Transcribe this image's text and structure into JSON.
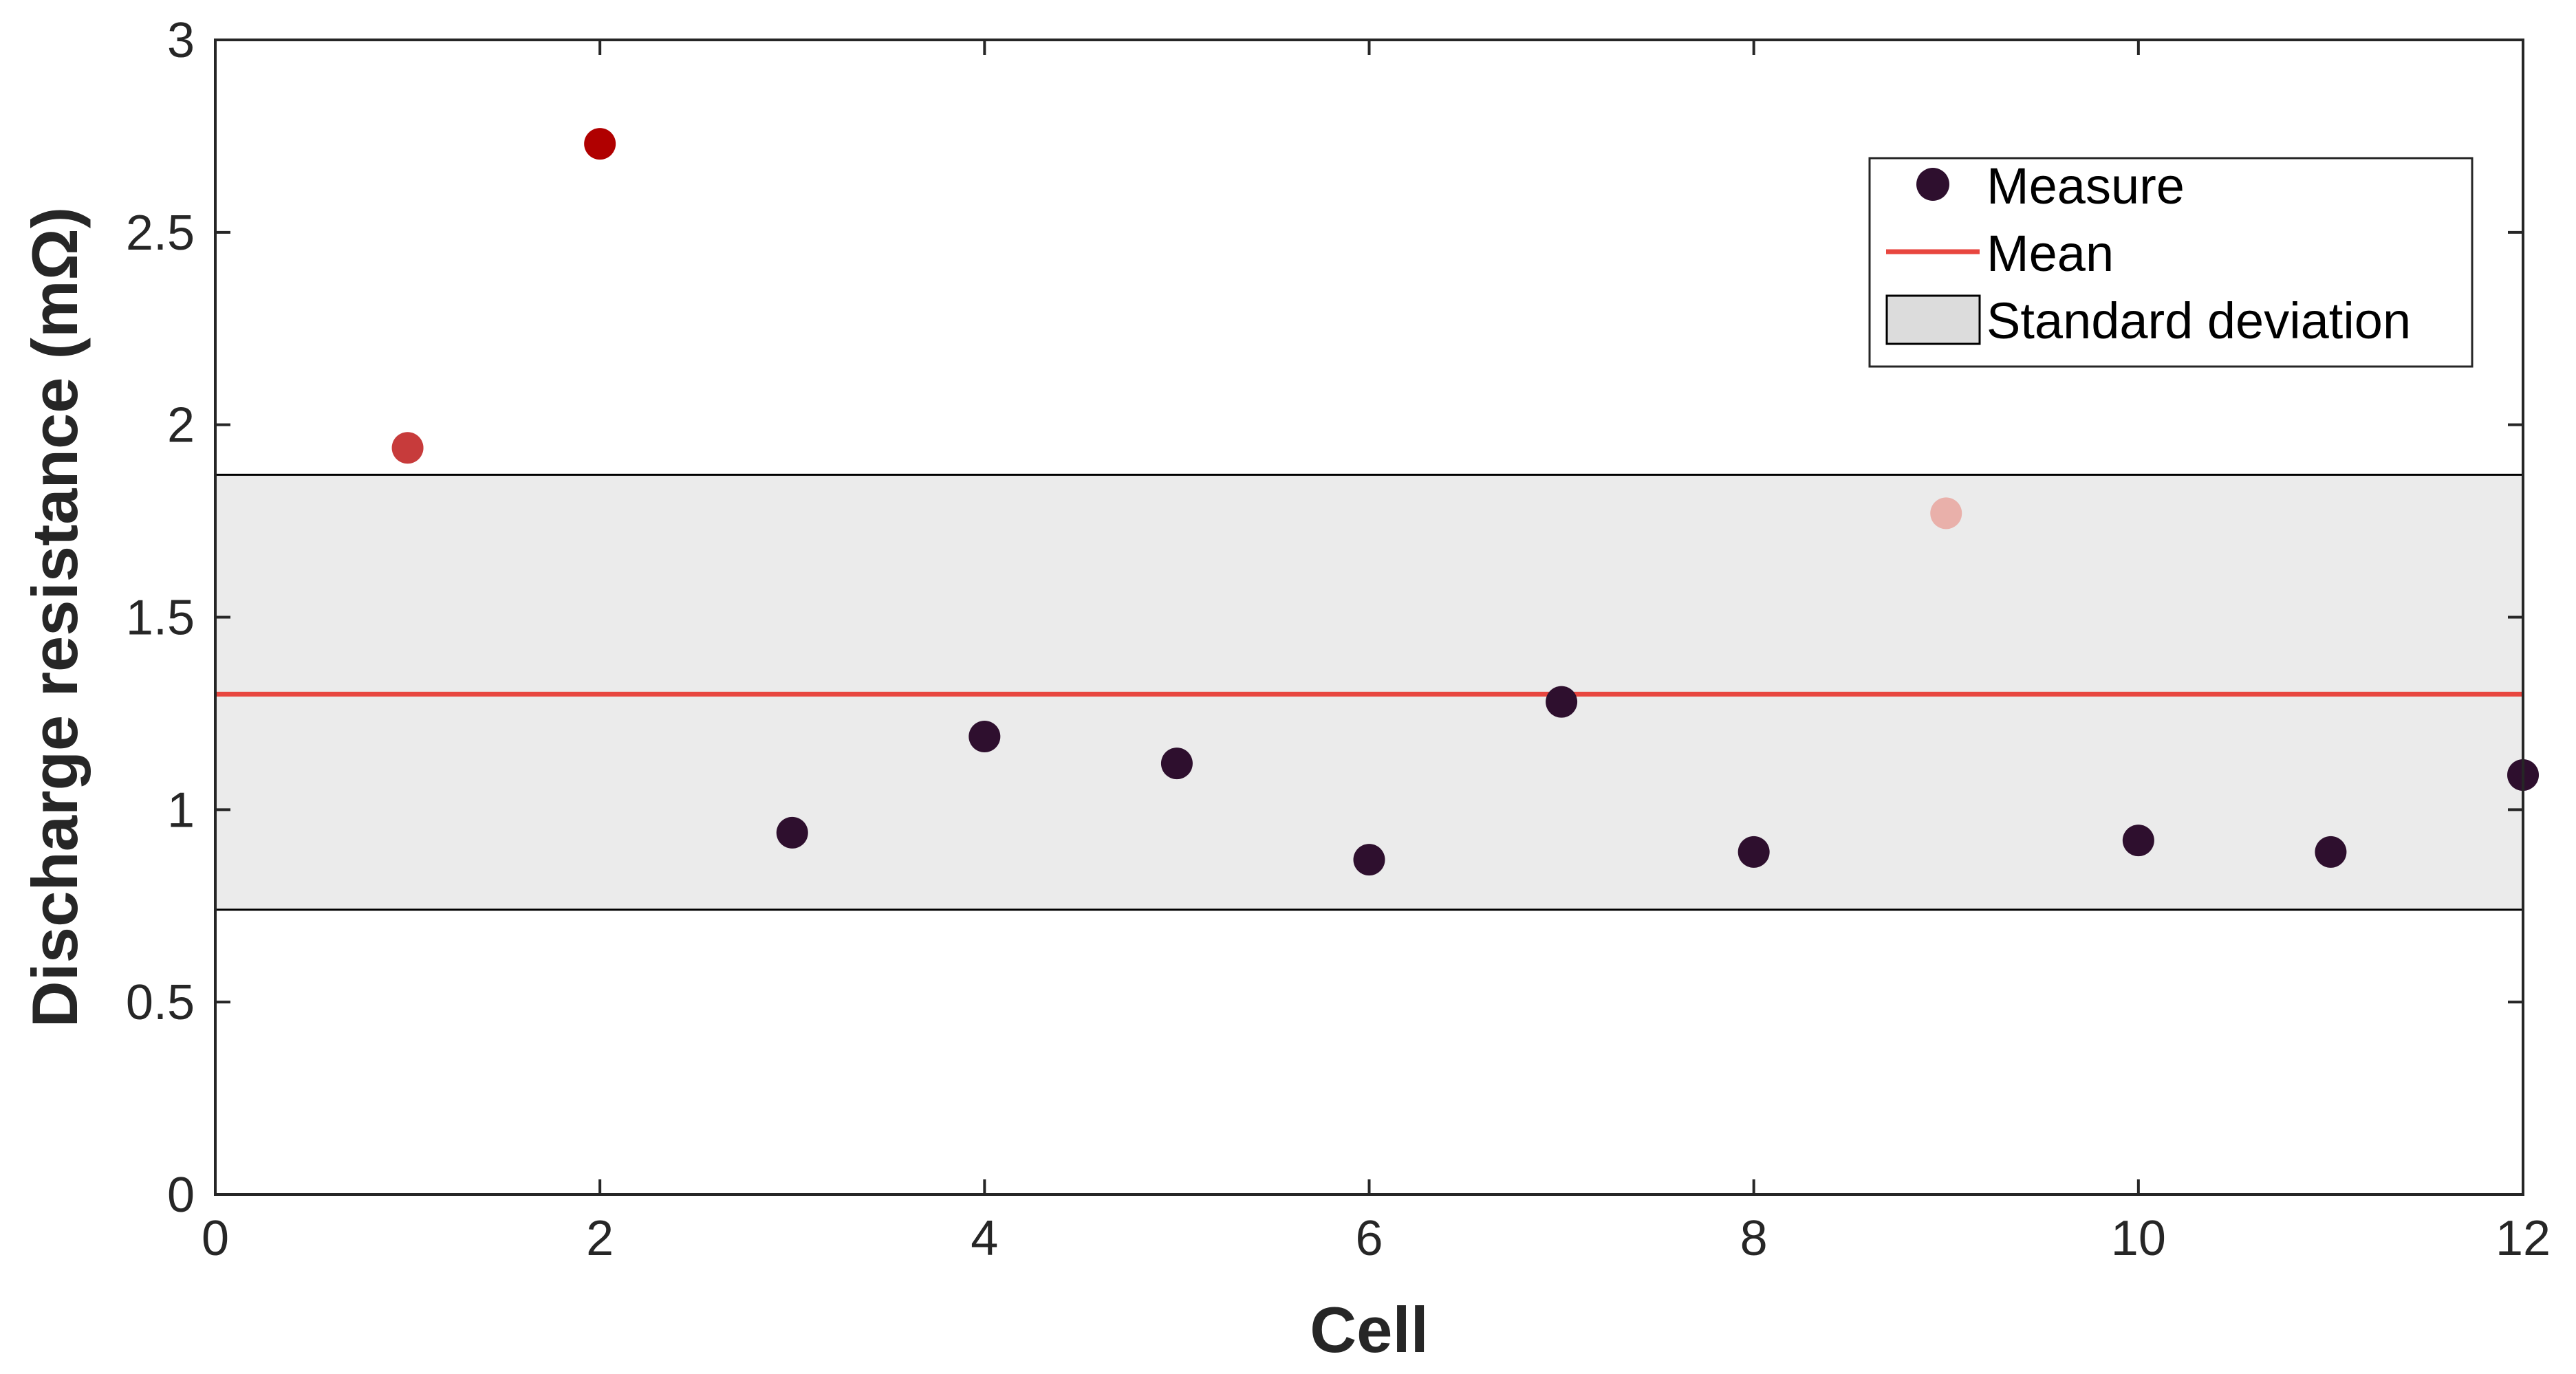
{
  "chart_data": {
    "type": "scatter",
    "xlabel": "Cell",
    "ylabel": "Discharge resistance (mΩ)",
    "xlim": [
      0,
      12
    ],
    "ylim": [
      0,
      3
    ],
    "x_ticks": [
      0,
      2,
      4,
      6,
      8,
      10,
      12
    ],
    "y_ticks": [
      0,
      0.5,
      1,
      1.5,
      2,
      2.5,
      3
    ],
    "x_tick_labels": [
      "0",
      "2",
      "4",
      "6",
      "8",
      "10",
      "12"
    ],
    "y_tick_labels": [
      "0",
      "0.5",
      "1",
      "1.5",
      "2",
      "2.5",
      "3"
    ],
    "grid": false,
    "legend": {
      "placement": "top-right",
      "entries": [
        "Measure",
        "Mean",
        "Standard deviation"
      ]
    },
    "series": [
      {
        "name": "Measure",
        "points": [
          {
            "x": 1,
            "y": 1.94,
            "color": "#c73b3b"
          },
          {
            "x": 2,
            "y": 2.73,
            "color": "#b00000"
          },
          {
            "x": 3,
            "y": 0.94,
            "color": "#2e0f2e"
          },
          {
            "x": 4,
            "y": 1.19,
            "color": "#2e0f2e"
          },
          {
            "x": 5,
            "y": 1.12,
            "color": "#2e0f2e"
          },
          {
            "x": 6,
            "y": 0.87,
            "color": "#2e0f2e"
          },
          {
            "x": 7,
            "y": 1.28,
            "color": "#2e0f2e"
          },
          {
            "x": 8,
            "y": 0.89,
            "color": "#2e0f2e"
          },
          {
            "x": 9,
            "y": 1.77,
            "color": "#e9b0aa"
          },
          {
            "x": 10,
            "y": 0.92,
            "color": "#2e0f2e"
          },
          {
            "x": 11,
            "y": 0.89,
            "color": "#2e0f2e"
          },
          {
            "x": 12,
            "y": 1.09,
            "color": "#2e0f2e"
          }
        ]
      },
      {
        "name": "Mean",
        "value": 1.3,
        "color": "#e8463f"
      },
      {
        "name": "Standard deviation",
        "lower": 0.74,
        "upper": 1.87,
        "fill": "#ebebeb"
      }
    ],
    "colors": {
      "axis": "#262626",
      "marker_default": "#2e0f2e",
      "legend_marker": "#2e0f2e",
      "legend_patch": "#dcdcdc"
    }
  }
}
